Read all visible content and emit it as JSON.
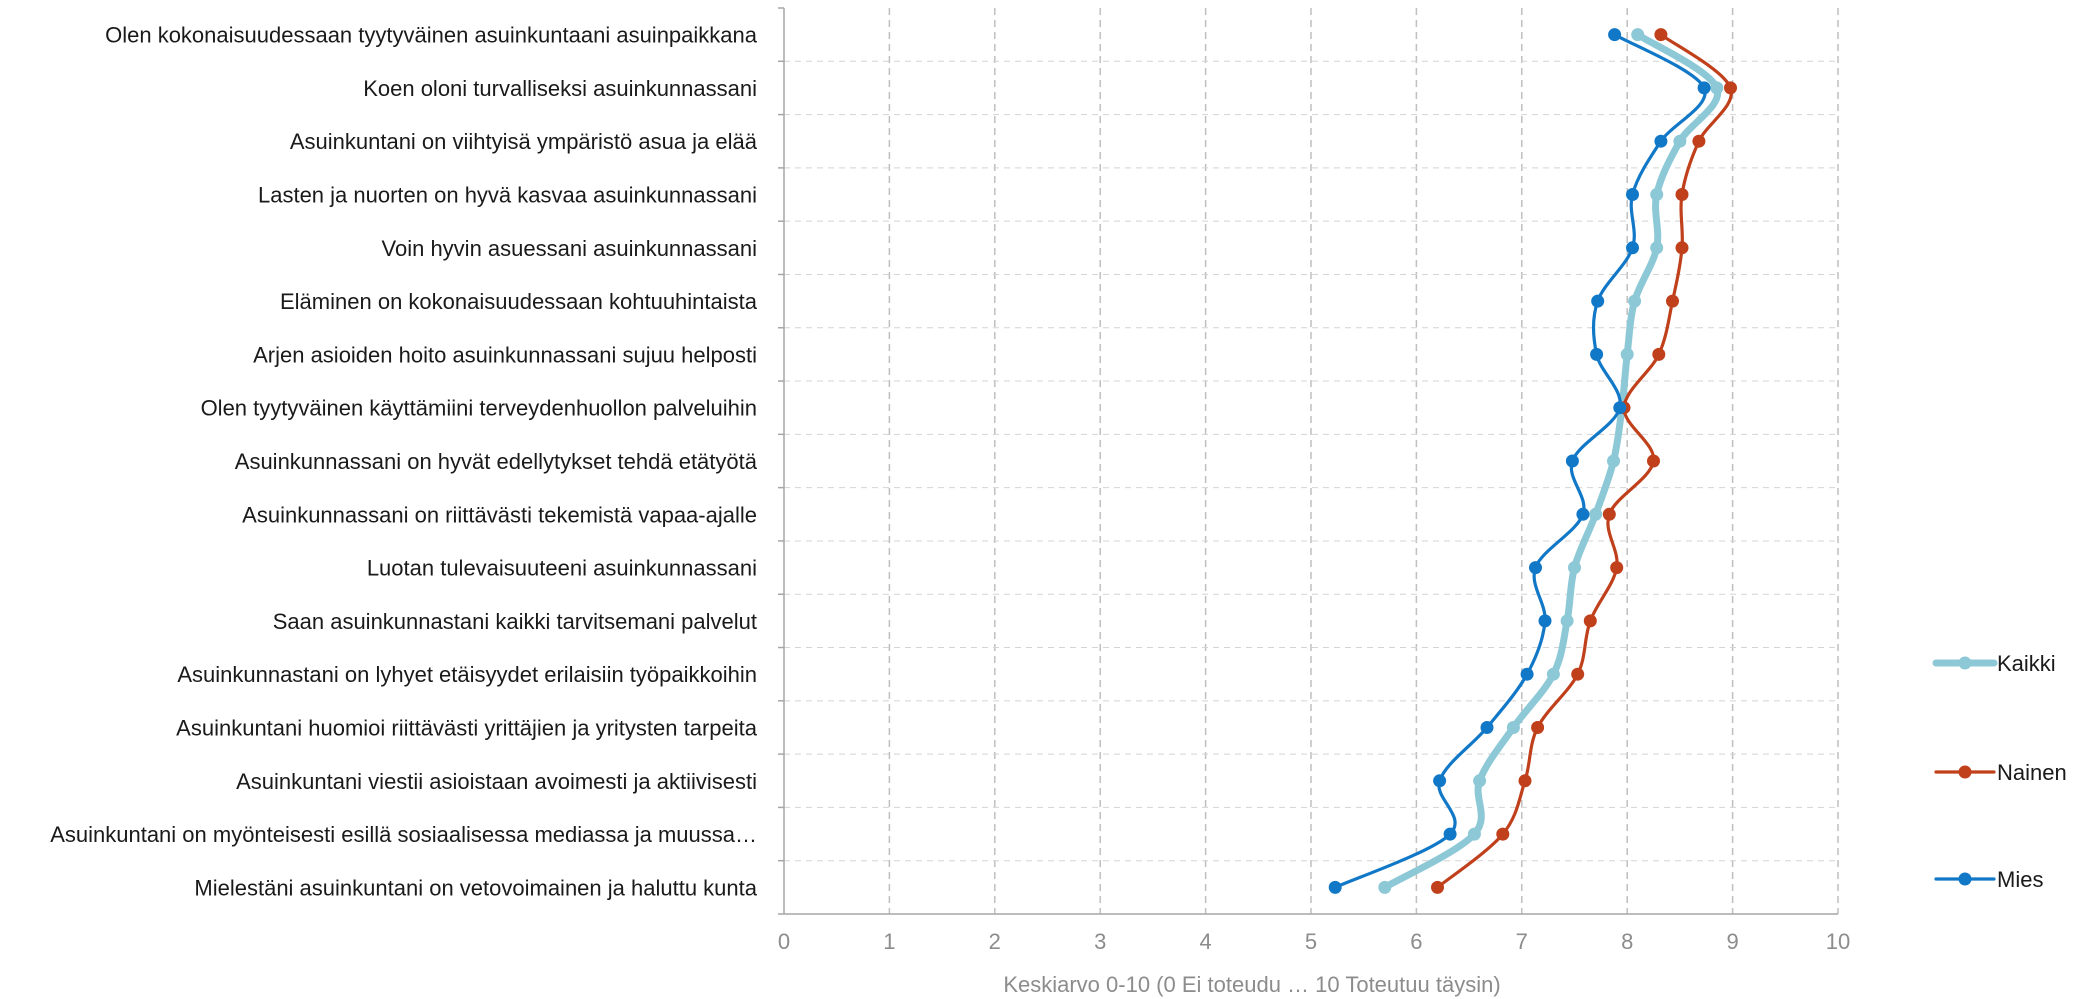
{
  "chart_data": {
    "type": "line",
    "orientation": "horizontal-categories",
    "categories": [
      "Olen kokonaisuudessaan tyytyväinen asuinkuntaani asuinpaikkana",
      "Koen oloni turvalliseksi asuinkunnassani",
      "Asuinkuntani on viihtyisä ympäristö asua ja elää",
      "Lasten ja nuorten on hyvä kasvaa asuinkunnassani",
      "Voin hyvin asuessani asuinkunnassani",
      "Eläminen on kokonaisuudessaan kohtuuhintaista",
      "Arjen asioiden hoito asuinkunnassani sujuu helposti",
      "Olen tyytyväinen käyttämiini terveydenhuollon palveluihin",
      "Asuinkunnassani on hyvät edellytykset tehdä etätyötä",
      "Asuinkunnassani on riittävästi tekemistä vapaa-ajalle",
      "Luotan tulevaisuuteeni asuinkunnassani",
      "Saan asuinkunnastani kaikki tarvitsemani palvelut",
      "Asuinkunnastani on lyhyet etäisyydet erilaisiin työpaikkoihin",
      "Asuinkuntani huomioi riittävästi yrittäjien ja yritysten tarpeita",
      "Asuinkuntani viestii asioistaan avoimesti ja aktiivisesti",
      "Asuinkuntani on myönteisesti esillä sosiaalisessa mediassa ja muussa…",
      "Mielestäni asuinkuntani on vetovoimainen ja haluttu kunta"
    ],
    "series": [
      {
        "name": "Kaikki",
        "color": "#8dc8d6",
        "values": [
          8.1,
          8.85,
          8.5,
          8.28,
          8.28,
          8.07,
          8.0,
          7.95,
          7.87,
          7.7,
          7.5,
          7.43,
          7.3,
          6.92,
          6.6,
          6.55,
          5.7
        ]
      },
      {
        "name": "Nainen",
        "color": "#c0401b",
        "values": [
          8.32,
          8.98,
          8.68,
          8.52,
          8.52,
          8.43,
          8.3,
          7.97,
          8.25,
          7.83,
          7.9,
          7.65,
          7.53,
          7.15,
          7.03,
          6.82,
          6.2
        ]
      },
      {
        "name": "Mies",
        "color": "#1178c8",
        "values": [
          7.88,
          8.73,
          8.32,
          8.05,
          8.05,
          7.72,
          7.71,
          7.93,
          7.48,
          7.58,
          7.13,
          7.22,
          7.05,
          6.67,
          6.22,
          6.32,
          5.23
        ]
      }
    ],
    "xlabel": "Keskiarvo 0-10 (0 Ei toteudu … 10 Toteutuu täysin)",
    "ylabel": "",
    "xlim": [
      0,
      10
    ],
    "xticks": [
      "0",
      "1",
      "2",
      "3",
      "4",
      "5",
      "6",
      "7",
      "8",
      "9",
      "10"
    ],
    "grid": true,
    "legend_position": "right"
  }
}
